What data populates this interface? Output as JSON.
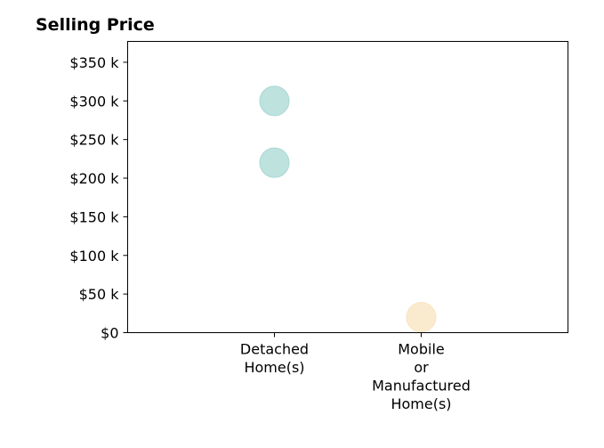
{
  "chart_data": {
    "type": "scatter",
    "title": "Selling Price",
    "xlabel": "",
    "ylabel": "",
    "categories": [
      [
        "Detached",
        "Home(s)"
      ],
      [
        "Mobile",
        "or",
        "Manufactured",
        "Home(s)"
      ]
    ],
    "y_ticks": [
      {
        "value": 0,
        "label": "$0"
      },
      {
        "value": 50000,
        "label": "$50 k"
      },
      {
        "value": 100000,
        "label": "$100 k"
      },
      {
        "value": 150000,
        "label": "$150 k"
      },
      {
        "value": 200000,
        "label": "$200 k"
      },
      {
        "value": 250000,
        "label": "$250 k"
      },
      {
        "value": 300000,
        "label": "$300 k"
      },
      {
        "value": 350000,
        "label": "$350 k"
      }
    ],
    "ylim": [
      0,
      377000
    ],
    "xlim": [
      0,
      3
    ],
    "grid": false,
    "points": [
      {
        "category": 0,
        "value": 300000,
        "color": "#a8d8d3"
      },
      {
        "category": 0,
        "value": 220000,
        "color": "#a8d8d3"
      },
      {
        "category": 1,
        "value": 20000,
        "color": "#f8e4bf"
      }
    ]
  }
}
